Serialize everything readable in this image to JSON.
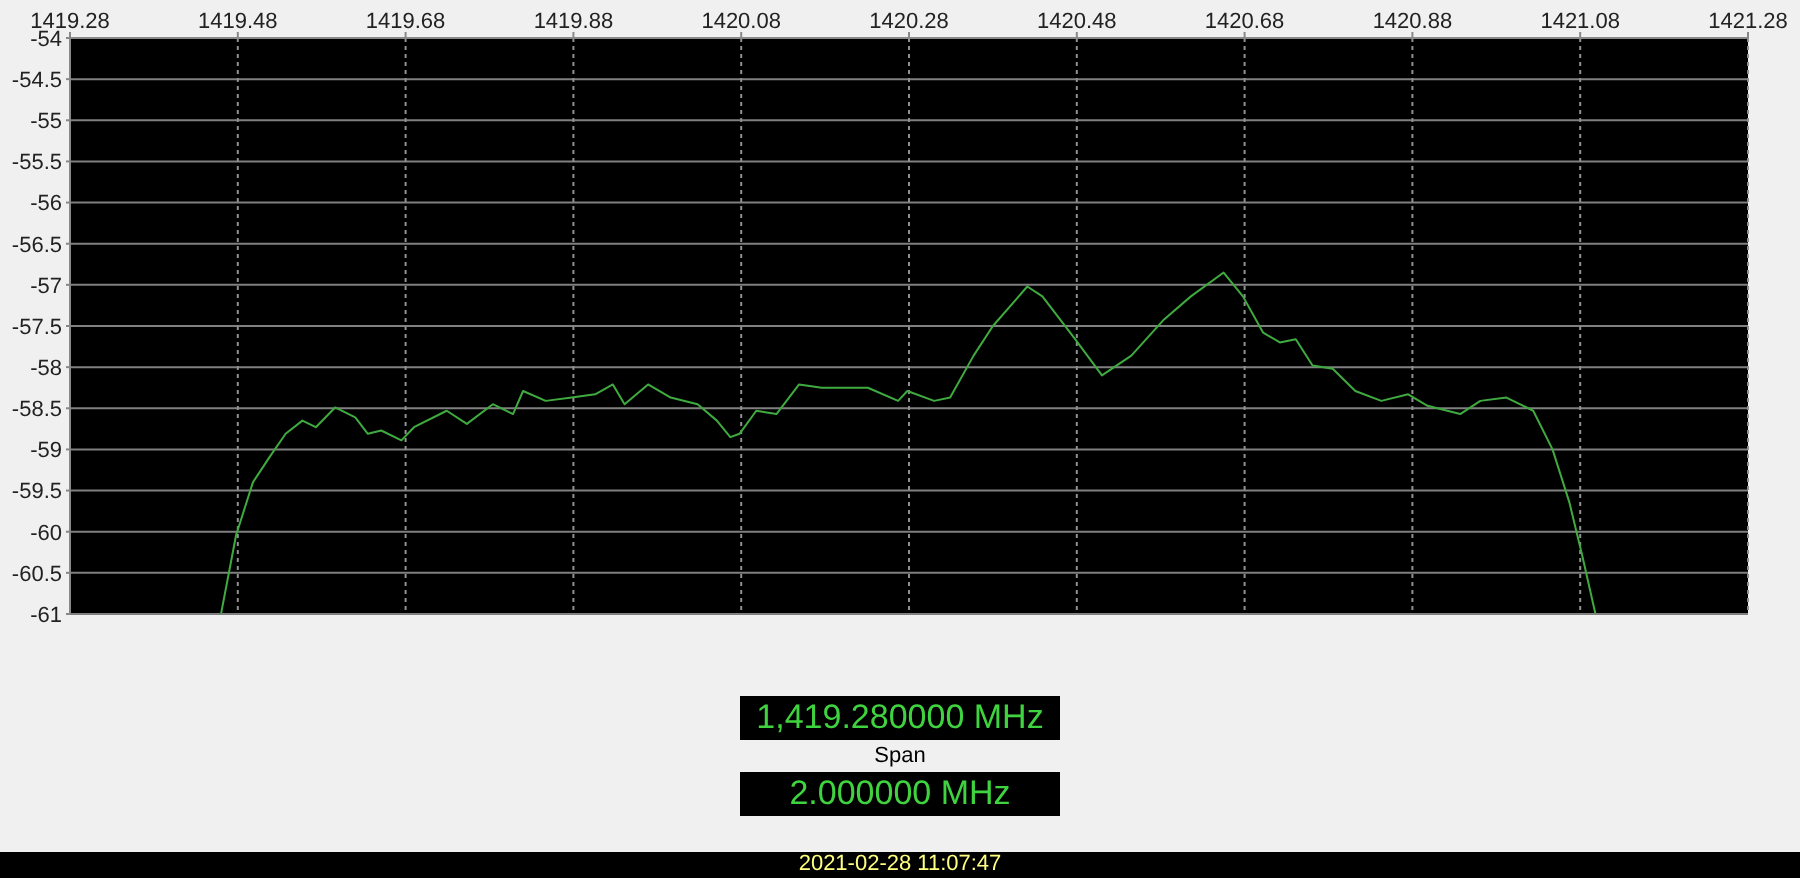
{
  "chart_data": {
    "type": "line",
    "x": [
      1419.46,
      1419.478,
      1419.498,
      1419.518,
      1419.537,
      1419.557,
      1419.573,
      1419.596,
      1419.62,
      1419.635,
      1419.651,
      1419.675,
      1419.69,
      1419.729,
      1419.753,
      1419.784,
      1419.808,
      1419.82,
      1419.847,
      1419.878,
      1419.906,
      1419.927,
      1419.941,
      1419.969,
      1419.996,
      1420.028,
      1420.051,
      1420.067,
      1420.078,
      1420.098,
      1420.122,
      1420.149,
      1420.176,
      1420.208,
      1420.231,
      1420.267,
      1420.278,
      1420.31,
      1420.329,
      1420.357,
      1420.38,
      1420.421,
      1420.439,
      1420.478,
      1420.51,
      1420.545,
      1420.584,
      1420.616,
      1420.655,
      1420.678,
      1420.702,
      1420.722,
      1420.741,
      1420.761,
      1420.785,
      1420.812,
      1420.843,
      1420.875,
      1420.898,
      1420.937,
      1420.961,
      1420.992,
      1421.024,
      1421.047,
      1421.067,
      1421.082,
      1421.098
    ],
    "series": [
      {
        "color": "#3faa3f",
        "values": [
          -61.0,
          -60.04,
          -59.4,
          -59.09,
          -58.81,
          -58.65,
          -58.73,
          -58.49,
          -58.61,
          -58.81,
          -58.77,
          -58.89,
          -58.73,
          -58.53,
          -58.69,
          -58.45,
          -58.57,
          -58.29,
          -58.41,
          -58.37,
          -58.33,
          -58.21,
          -58.45,
          -58.21,
          -58.37,
          -58.45,
          -58.65,
          -58.85,
          -58.81,
          -58.53,
          -58.57,
          -58.21,
          -58.25,
          -58.25,
          -58.25,
          -58.41,
          -58.29,
          -58.41,
          -58.37,
          -57.86,
          -57.5,
          -57.02,
          -57.14,
          -57.66,
          -58.1,
          -57.86,
          -57.42,
          -57.14,
          -56.85,
          -57.14,
          -57.58,
          -57.7,
          -57.66,
          -57.98,
          -58.02,
          -58.29,
          -58.41,
          -58.33,
          -58.47,
          -58.57,
          -58.41,
          -58.37,
          -58.53,
          -59.0,
          -59.64,
          -60.27,
          -60.99
        ]
      }
    ],
    "xlim": [
      1419.28,
      1421.28
    ],
    "xticks": [
      1419.28,
      1419.48,
      1419.68,
      1419.88,
      1420.08,
      1420.28,
      1420.48,
      1420.68,
      1420.88,
      1421.08,
      1421.28
    ],
    "ylim": [
      -61,
      -54
    ],
    "yticks": [
      -61,
      -60.5,
      -60,
      -59.5,
      -59,
      -58.5,
      -58,
      -57.5,
      -57,
      -56.5,
      -56,
      -55.5,
      -55,
      -54.5,
      -54
    ],
    "grid": true,
    "marker": "none",
    "line_style": "solid",
    "annotations": [
      "1,419.280000 MHz",
      "Span",
      "2.000000 MHz",
      "2021-02-28 11:07:47"
    ]
  }
}
